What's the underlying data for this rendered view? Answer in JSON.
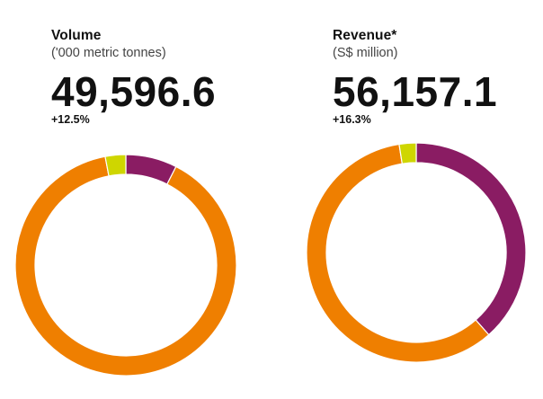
{
  "colors": {
    "orange": "#ef7f00",
    "purple": "#8a1c63",
    "yellow": "#cfd600"
  },
  "chart_data": [
    {
      "type": "pie",
      "title": "Volume",
      "subtitle": "('000 metric tonnes)",
      "total": "49,596.6",
      "change": "+12.5%",
      "slices": [
        {
          "value": 7.5,
          "color": "#8a1c63"
        },
        {
          "value": 89.5,
          "color": "#ef7f00"
        },
        {
          "value": 3.0,
          "color": "#cfd600"
        }
      ]
    },
    {
      "type": "pie",
      "title": "Revenue*",
      "subtitle": "(S$ million)",
      "total": "56,157.1",
      "change": "+16.3%",
      "slices": [
        {
          "value": 38.5,
          "color": "#8a1c63"
        },
        {
          "value": 59.0,
          "color": "#ef7f00"
        },
        {
          "value": 2.5,
          "color": "#cfd600"
        }
      ]
    }
  ]
}
